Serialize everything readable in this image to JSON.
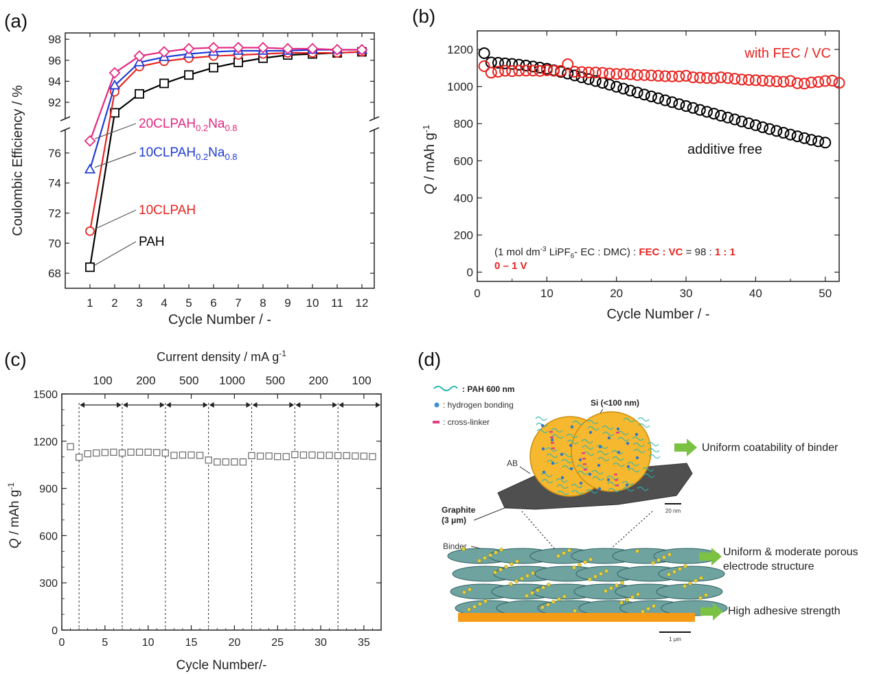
{
  "colors": {
    "black": "#000000",
    "red": "#e8231f",
    "blue": "#1f3bd6",
    "magenta": "#e5267f",
    "gray": "#555555",
    "teal": "#2ab7b0",
    "gold": "#f5b82e",
    "green": "#7cc242",
    "orange": "#f59b16"
  },
  "panels": {
    "a": "(a)",
    "b": "(b)",
    "c": "(c)",
    "d": "(d)"
  },
  "chart_data": [
    {
      "panel": "a",
      "type": "line",
      "xlabel": "Cycle Number   /   -",
      "ylabel": "Coulombic Efficiency / %",
      "x": [
        1,
        2,
        3,
        4,
        5,
        6,
        7,
        8,
        9,
        10,
        11,
        12
      ],
      "xlim": [
        0,
        12.5
      ],
      "y_break": true,
      "ylim_lower": [
        67,
        77.5
      ],
      "ylim_upper": [
        90.5,
        98.6
      ],
      "xticks": [
        "1",
        "2",
        "3",
        "4",
        "5",
        "6",
        "7",
        "8",
        "9",
        "10",
        "11",
        "12"
      ],
      "yticks_lower": [
        "68",
        "70",
        "72",
        "74",
        "76"
      ],
      "yticks_upper": [
        "92",
        "94",
        "96",
        "98"
      ],
      "series": [
        {
          "name": "PAH",
          "marker": "square",
          "color": "#000000",
          "values": [
            68.4,
            91.0,
            92.8,
            93.8,
            94.6,
            95.3,
            95.8,
            96.2,
            96.5,
            96.6,
            96.7,
            96.8
          ]
        },
        {
          "name": "10CLPAH",
          "marker": "circle",
          "color": "#e8231f",
          "values": [
            70.8,
            93.0,
            95.4,
            95.9,
            96.2,
            96.4,
            96.5,
            96.6,
            96.7,
            96.7,
            96.7,
            96.8
          ]
        },
        {
          "name": "10CLPAH0.2Na0.8",
          "marker": "triangle",
          "color": "#1f3bd6",
          "values": [
            74.9,
            93.6,
            95.8,
            96.3,
            96.6,
            96.8,
            96.9,
            96.9,
            96.9,
            97.0,
            97.0,
            97.0
          ]
        },
        {
          "name": "20CLPAH0.2Na0.8",
          "marker": "diamond",
          "color": "#e5267f",
          "values": [
            76.8,
            94.8,
            96.4,
            96.8,
            97.1,
            97.2,
            97.2,
            97.2,
            97.1,
            97.1,
            97.0,
            97.0
          ]
        }
      ],
      "legend_labels": [
        {
          "main": "20CLPAH",
          "sub1": "0.2",
          "mid": "Na",
          "sub2": "0.8",
          "color": "#e5267f"
        },
        {
          "main": "10CLPAH",
          "sub1": "0.2",
          "mid": "Na",
          "sub2": "0.8",
          "color": "#1f3bd6"
        },
        {
          "main": "10CLPAH",
          "sub1": "",
          "mid": "",
          "sub2": "",
          "color": "#e8231f"
        },
        {
          "main": "PAH",
          "sub1": "",
          "mid": "",
          "sub2": "",
          "color": "#000000"
        }
      ]
    },
    {
      "panel": "b",
      "type": "scatter",
      "xlabel": "Cycle Number / -",
      "ylabel_q": "Q",
      "ylabel_rest": " / mAh g",
      "ylabel_sup": "-1",
      "xlim": [
        0,
        52
      ],
      "ylim": [
        -50,
        1300
      ],
      "xticks": [
        0,
        10,
        20,
        30,
        40,
        50
      ],
      "yticks": [
        0,
        200,
        400,
        600,
        800,
        1000,
        1200
      ],
      "series": [
        {
          "name": "additive free",
          "color": "#000000",
          "values": [
            1180,
            1130,
            1128,
            1125,
            1122,
            1118,
            1113,
            1108,
            1102,
            1096,
            1088,
            1079,
            1070,
            1060,
            1050,
            1040,
            1030,
            1020,
            1010,
            999,
            989,
            978,
            968,
            957,
            947,
            937,
            926,
            916,
            905,
            895,
            885,
            874,
            864,
            854,
            843,
            833,
            823,
            812,
            802,
            792,
            781,
            771,
            761,
            751,
            741,
            732,
            722,
            713,
            705,
            698
          ]
        },
        {
          "name": "with FEC / VC",
          "color": "#e8231f",
          "values": [
            1110,
            1075,
            1080,
            1085,
            1083,
            1086,
            1086,
            1086,
            1084,
            1088,
            1085,
            1084,
            1120,
            1080,
            1078,
            1076,
            1076,
            1074,
            1070,
            1068,
            1068,
            1066,
            1062,
            1062,
            1060,
            1058,
            1056,
            1055,
            1055,
            1058,
            1050,
            1048,
            1046,
            1045,
            1050,
            1046,
            1042,
            1038,
            1036,
            1034,
            1032,
            1030,
            1028,
            1026,
            1030,
            1018,
            1016,
            1022,
            1025,
            1030,
            1032,
            1020
          ]
        }
      ],
      "annotation_line1_pre": "(1 mol dm",
      "annotation_line1_sup": "-3",
      "annotation_line1_mid": " LiPF",
      "annotation_line1_sub": "6",
      "annotation_line1_mid2": "- EC : DMC) : ",
      "annotation_red1": "FEC : VC",
      "annotation_mid3": " = 98 : ",
      "annotation_red2": "1 : 1",
      "annotation_line2": "0 – 1 V"
    },
    {
      "panel": "c",
      "type": "scatter",
      "xlabel": "Cycle Number/-",
      "ylabel_q": "Q",
      "ylabel_rest": " / mAh g",
      "ylabel_sup": "-1",
      "top_axis_title": "Current density / mA g",
      "top_axis_sup": "-1",
      "top_labels": [
        "100",
        "200",
        "500",
        "1000",
        "500",
        "200",
        "100"
      ],
      "xlim": [
        0,
        37
      ],
      "ylim": [
        0,
        1500
      ],
      "xticks": [
        0,
        5,
        10,
        15,
        20,
        25,
        30,
        35
      ],
      "yticks": [
        0,
        300,
        600,
        900,
        1200,
        1500
      ],
      "dividers": [
        2,
        7,
        12,
        17,
        22,
        27,
        32
      ],
      "values": [
        1165,
        1098,
        1120,
        1125,
        1128,
        1130,
        1125,
        1130,
        1130,
        1130,
        1128,
        1125,
        1110,
        1112,
        1112,
        1110,
        1080,
        1068,
        1068,
        1068,
        1068,
        1108,
        1105,
        1106,
        1102,
        1102,
        1115,
        1112,
        1112,
        1110,
        1110,
        1108,
        1108,
        1106,
        1105,
        1102
      ]
    }
  ],
  "diagram": {
    "legend_pah": ": PAH   600 nm",
    "legend_hb": ": hydrogen  bonding",
    "legend_cl": ": cross-linker",
    "si_label": "Si (<100 nm)",
    "ab_label": "AB",
    "graphite_label1": "Graphite",
    "graphite_label2": "(3 μm)",
    "binder_label": "Binder",
    "scale1": "20 nm",
    "scale2": "1 μm",
    "arrow1": "Uniform coatability of binder",
    "arrow2a": "Uniform & moderate porous",
    "arrow2b": "electrode structure",
    "arrow3": "High adhesive strength"
  }
}
